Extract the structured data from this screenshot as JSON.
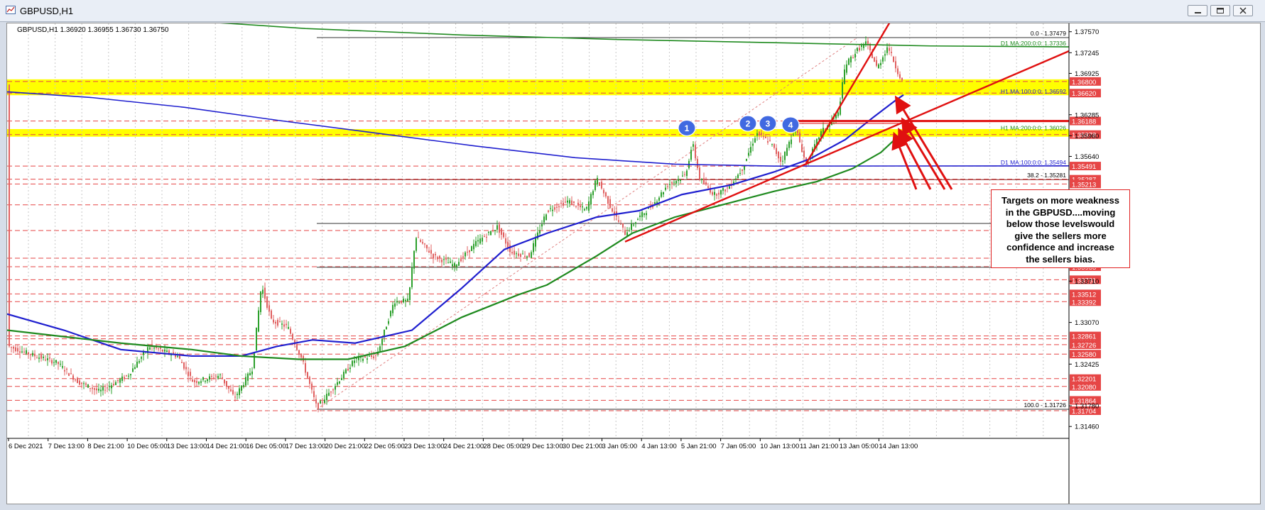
{
  "window": {
    "title": "GBPUSD,H1",
    "buttons": [
      "minimize",
      "restore",
      "close"
    ]
  },
  "chart_header": "GBPUSD,H1  1.36920 1.36955 1.36730 1.36750",
  "chart_data": {
    "type": "candlestick",
    "symbol": "GBPUSD",
    "timeframe": "H1",
    "ohlc_last": {
      "open": 1.3692,
      "high": 1.36955,
      "low": 1.3673,
      "close": 1.3675
    },
    "ylim": [
      1.3145,
      1.3775
    ],
    "x_labels": [
      "6 Dec 2021",
      "7 Dec 13:00",
      "8 Dec 21:00",
      "10 Dec 05:00",
      "13 Dec 13:00",
      "14 Dec 21:00",
      "16 Dec 05:00",
      "17 Dec 13:00",
      "20 Dec 21:00",
      "22 Dec 05:00",
      "23 Dec 13:00",
      "24 Dec 21:00",
      "28 Dec 05:00",
      "29 Dec 13:00",
      "30 Dec 21:00",
      "3 Jan 05:00",
      "4 Jan 13:00",
      "5 Jan 21:00",
      "7 Jan 05:00",
      "10 Jan 13:00",
      "11 Jan 21:00",
      "13 Jan 05:00",
      "14 Jan 13:00"
    ],
    "y_ticks": [
      "1.37570",
      "1.37245",
      "1.36925",
      "1.36285",
      "1.35960",
      "1.35640",
      "1.34995",
      "1.34675",
      "1.34355",
      "1.33710",
      "1.33070",
      "1.32425",
      "1.31780",
      "1.31460"
    ],
    "support_resistance_levels": [
      "1.36800",
      "1.36620",
      "1.36188",
      "1.35978",
      "1.35491",
      "1.35287",
      "1.35213",
      "1.34891",
      "1.34493",
      "1.34064",
      "1.33933",
      "1.33731",
      "1.33512",
      "1.33392",
      "1.32817",
      "1.32861",
      "1.32726",
      "1.32580",
      "1.32201",
      "1.32080",
      "1.31864",
      "1.31704"
    ],
    "highlighted_levels": [
      {
        "top": "1.36800",
        "bottom": "1.36620",
        "color": "#ffff00"
      },
      {
        "top": "1.36030",
        "bottom": "1.35978",
        "color": "#ffff00"
      }
    ],
    "moving_averages": [
      {
        "label": "D1 MA:200:0:0: 1.37336",
        "value": 1.37336,
        "color": "#1f8a1f"
      },
      {
        "label": "H1 MA:100:0:0: 1.36592",
        "value": 1.36592,
        "color": "#1f1fcf"
      },
      {
        "label": "H1 MA:200:0:0: 1.36026",
        "value": 1.36026,
        "color": "#1f8a1f"
      },
      {
        "label": "D1 MA:100:0:0: 1.35494",
        "value": 1.35494,
        "color": "#1f1fcf"
      }
    ],
    "fibonacci_levels": [
      {
        "label": "0.0 - 1.37479",
        "value": 1.37479
      },
      {
        "label": "38.2 - 1.35281",
        "value": 1.35281
      },
      {
        "label": "50.0 - 1.34603",
        "value": 1.34603
      },
      {
        "label": "61.8 - 1.33924",
        "value": 1.33924
      },
      {
        "label": "100.0 - 1.31726",
        "value": 1.31726
      }
    ],
    "markers": [
      "1",
      "2",
      "3",
      "4"
    ],
    "colors": {
      "bull_candle": "#2ca02c",
      "bear_candle": "#e06060",
      "level_line": "#e64646",
      "trend_line": "#e01010"
    }
  },
  "annotation": {
    "lines": [
      "Targets on more weakness",
      "in the GBPUSD....moving",
      "below those levelswould",
      "give the sellers more",
      "confidence and increase",
      "the sellers bias."
    ]
  }
}
